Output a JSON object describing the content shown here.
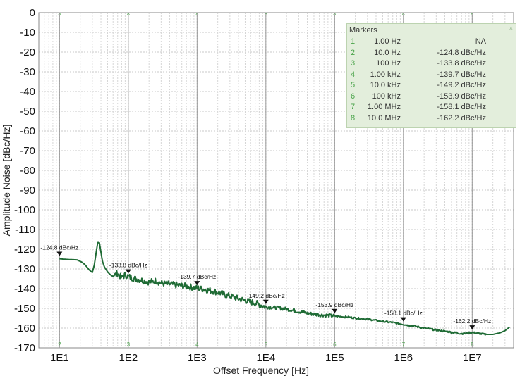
{
  "chart_data": {
    "type": "line",
    "xlabel": "Offset Frequency [Hz]",
    "ylabel": "Amplitude Noise [dBc/Hz]",
    "xscale": "log",
    "xlim": [
      5,
      40000000
    ],
    "ylim": [
      -170,
      0
    ],
    "x_ticks": [
      10,
      100,
      1000,
      10000,
      100000,
      1000000,
      10000000
    ],
    "x_tick_labels": [
      "1E1",
      "1E2",
      "1E3",
      "1E4",
      "1E5",
      "1E6",
      "1E7"
    ],
    "y_ticks": [
      0,
      -10,
      -20,
      -30,
      -40,
      -50,
      -60,
      -70,
      -80,
      -90,
      -100,
      -110,
      -120,
      -130,
      -140,
      -150,
      -160,
      -170
    ],
    "y_tick_labels": [
      "0",
      "-10",
      "-20",
      "-30",
      "-40",
      "-50",
      "-60",
      "-70",
      "-80",
      "-90",
      "-100",
      "-110",
      "-120",
      "-130",
      "-140",
      "-150",
      "-160",
      "-170"
    ],
    "grid": true,
    "line_color": "#1f6b35",
    "series": [
      {
        "x": [
          10,
          11,
          13,
          15,
          18,
          21,
          23,
          25,
          27,
          30,
          32,
          34,
          36,
          38,
          40,
          42,
          45,
          48,
          50,
          55,
          60,
          70,
          80,
          90,
          100,
          120,
          150,
          200,
          250,
          300,
          400,
          500,
          700,
          1000,
          1500,
          2000,
          3000,
          5000,
          7000,
          10000,
          15000,
          20000,
          30000,
          50000,
          70000,
          100000,
          150000,
          200000,
          300000,
          500000,
          700000,
          1000000,
          1500000,
          2000000,
          3000000,
          5000000,
          7000000,
          10000000,
          15000000,
          20000000,
          25000000,
          30000000,
          35000000
        ],
        "y": [
          -124.8,
          -125.0,
          -125.2,
          -125.3,
          -125.4,
          -126.5,
          -127.6,
          -129.0,
          -130.5,
          -131.8,
          -128.0,
          -122.0,
          -116.5,
          -116.8,
          -121.5,
          -126.0,
          -129.0,
          -130.5,
          -131.5,
          -133.0,
          -133.8,
          -132.2,
          -134.5,
          -133.0,
          -133.8,
          -134.8,
          -135.5,
          -136.6,
          -136.0,
          -137.2,
          -137.8,
          -138.2,
          -138.8,
          -139.7,
          -140.8,
          -141.8,
          -143.8,
          -146.0,
          -147.3,
          -149.2,
          -149.8,
          -150.3,
          -151.6,
          -153.0,
          -153.4,
          -153.9,
          -154.4,
          -154.9,
          -155.5,
          -156.6,
          -157.2,
          -158.1,
          -159.1,
          -160.0,
          -161.0,
          -162.1,
          -162.8,
          -162.2,
          -163.2,
          -163.2,
          -162.5,
          -161.3,
          -159.5
        ]
      }
    ],
    "marker_labels": [
      {
        "n": "2",
        "x": 10,
        "y": -124.8,
        "text": "-124.8 dBc/Hz"
      },
      {
        "n": "3",
        "x": 100,
        "y": -133.8,
        "text": "-133.8 dBc/Hz"
      },
      {
        "n": "4",
        "x": 1000,
        "y": -139.7,
        "text": "-139.7 dBc/Hz"
      },
      {
        "n": "5",
        "x": 10000,
        "y": -149.2,
        "text": "-149.2 dBc/Hz"
      },
      {
        "n": "6",
        "x": 100000,
        "y": -153.9,
        "text": "-153.9 dBc/Hz"
      },
      {
        "n": "7",
        "x": 1000000,
        "y": -158.1,
        "text": "-158.1 dBc/Hz"
      },
      {
        "n": "8",
        "x": 10000000,
        "y": -162.2,
        "text": "-162.2 dBc/Hz"
      }
    ]
  },
  "markers_table": {
    "title": "Markers",
    "close_icon": "×",
    "rows": [
      {
        "n": "1",
        "freq": "1.00 Hz",
        "value": "NA"
      },
      {
        "n": "2",
        "freq": "10.0 Hz",
        "value": "-124.8 dBc/Hz"
      },
      {
        "n": "3",
        "freq": "100 Hz",
        "value": "-133.8 dBc/Hz"
      },
      {
        "n": "4",
        "freq": "1.00 kHz",
        "value": "-139.7 dBc/Hz"
      },
      {
        "n": "5",
        "freq": "10.0 kHz",
        "value": "-149.2 dBc/Hz"
      },
      {
        "n": "6",
        "freq": "100 kHz",
        "value": "-153.9 dBc/Hz"
      },
      {
        "n": "7",
        "freq": "1.00 MHz",
        "value": "-158.1 dBc/Hz"
      },
      {
        "n": "8",
        "freq": "10.0 MHz",
        "value": "-162.2 dBc/Hz"
      }
    ]
  }
}
